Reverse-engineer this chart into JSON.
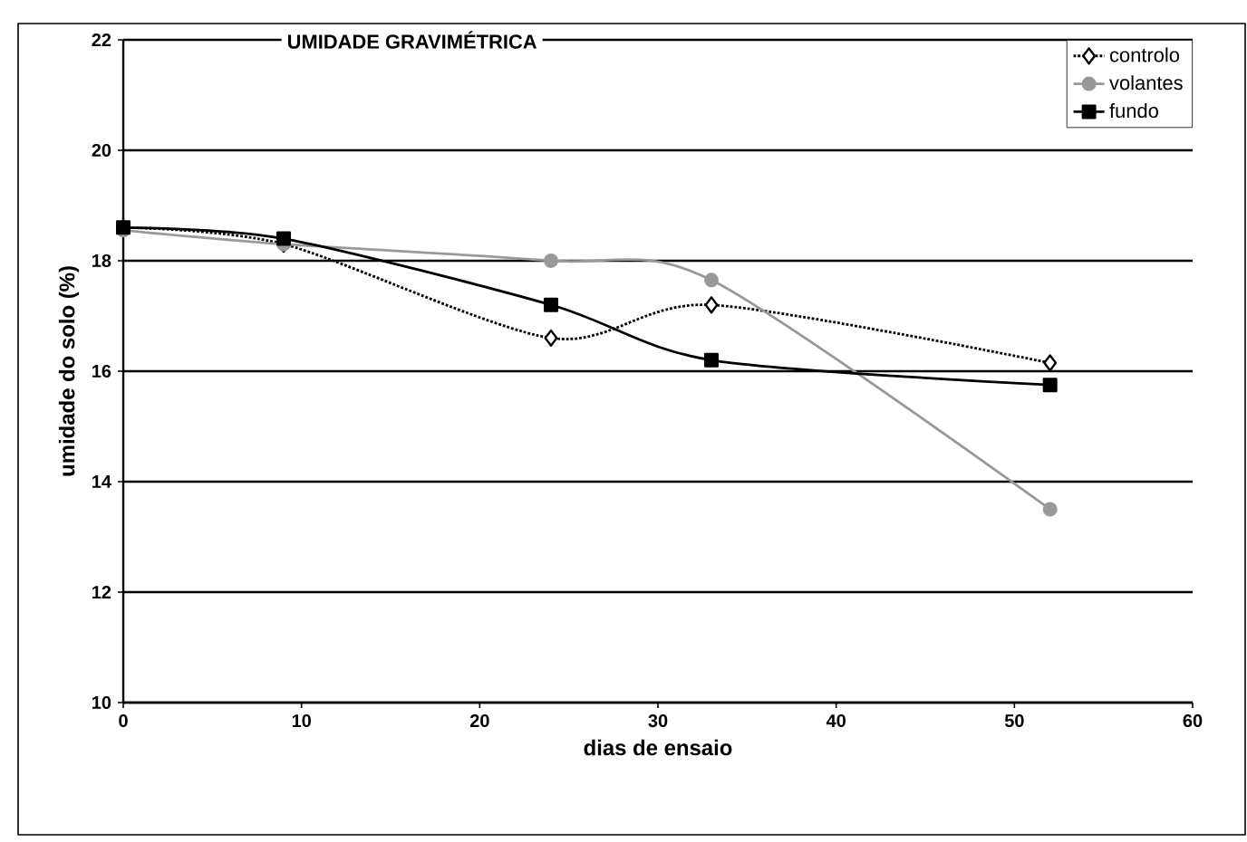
{
  "chart_data": {
    "type": "line",
    "title": "UMIDADE GRAVIMÉTRICA",
    "xlabel": "dias de ensaio",
    "ylabel": "umidade do solo (%)",
    "xlim": [
      0,
      60
    ],
    "xticks": [
      0,
      10,
      20,
      30,
      40,
      50,
      60
    ],
    "ylim": [
      10,
      22
    ],
    "yticks": [
      10,
      12,
      14,
      16,
      18,
      20,
      22
    ],
    "grid": "y",
    "legend": "top right",
    "series": [
      {
        "name": "controlo",
        "color": "#000000",
        "line_style": "dotted",
        "marker": "diamond",
        "x": [
          0,
          9,
          24,
          33,
          52
        ],
        "values": [
          18.6,
          18.3,
          16.6,
          17.2,
          16.15
        ]
      },
      {
        "name": "volantes",
        "color": "#999999",
        "line_style": "solid",
        "marker": "circle",
        "x": [
          0,
          9,
          24,
          33,
          52
        ],
        "values": [
          18.55,
          18.3,
          18.0,
          17.65,
          13.5
        ]
      },
      {
        "name": "fundo",
        "color": "#000000",
        "line_style": "solid",
        "marker": "square",
        "x": [
          0,
          9,
          24,
          33,
          52
        ],
        "values": [
          18.6,
          18.4,
          17.2,
          16.2,
          15.75
        ]
      }
    ]
  }
}
